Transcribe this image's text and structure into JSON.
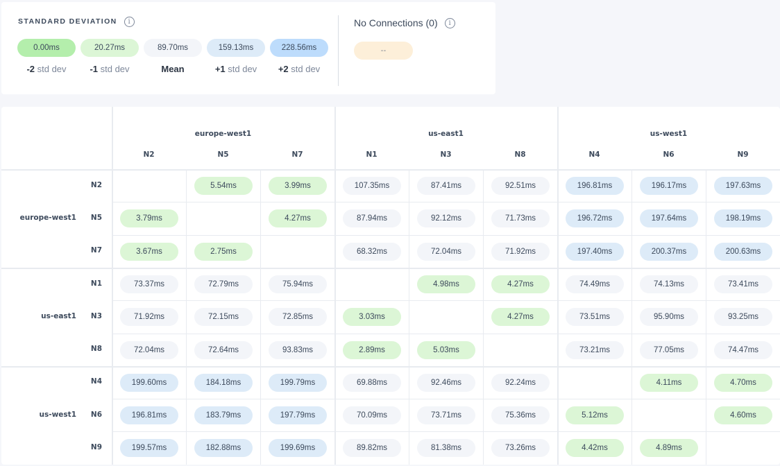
{
  "std_panel": {
    "title": "STANDARD DEVIATION",
    "info_icon": "info-circle-icon",
    "levels": [
      {
        "value": "0.00ms",
        "prefix": "-2",
        "suffix": "std dev",
        "color": "#b4eeac"
      },
      {
        "value": "20.27ms",
        "prefix": "-1",
        "suffix": "std dev",
        "color": "#dcf6d6"
      },
      {
        "value": "89.70ms",
        "prefix": "Mean",
        "suffix": "",
        "color": "#f3f5f9"
      },
      {
        "value": "159.13ms",
        "prefix": "+1",
        "suffix": "std dev",
        "color": "#ddebf8"
      },
      {
        "value": "228.56ms",
        "prefix": "+2",
        "suffix": "std dev",
        "color": "#bddcfc"
      }
    ]
  },
  "no_connections": {
    "title": "No Connections (0)",
    "value": "--",
    "color": "#fdefd9"
  },
  "colors": {
    "green": "#dcf6d6",
    "grey": "#f3f5f9",
    "blue": "#ddebf8"
  },
  "matrix": {
    "groups": [
      {
        "name": "europe-west1",
        "nodes": [
          "N2",
          "N5",
          "N7"
        ]
      },
      {
        "name": "us-east1",
        "nodes": [
          "N1",
          "N3",
          "N8"
        ]
      },
      {
        "name": "us-west1",
        "nodes": [
          "N4",
          "N6",
          "N9"
        ]
      }
    ],
    "rows": [
      [
        null,
        "5.54ms",
        "3.99ms",
        "107.35ms",
        "87.41ms",
        "92.51ms",
        "196.81ms",
        "196.17ms",
        "197.63ms"
      ],
      [
        "3.79ms",
        null,
        "4.27ms",
        "87.94ms",
        "92.12ms",
        "71.73ms",
        "196.72ms",
        "197.64ms",
        "198.19ms"
      ],
      [
        "3.67ms",
        "2.75ms",
        null,
        "68.32ms",
        "72.04ms",
        "71.92ms",
        "197.40ms",
        "200.37ms",
        "200.63ms"
      ],
      [
        "73.37ms",
        "72.79ms",
        "75.94ms",
        null,
        "4.98ms",
        "4.27ms",
        "74.49ms",
        "74.13ms",
        "73.41ms"
      ],
      [
        "71.92ms",
        "72.15ms",
        "72.85ms",
        "3.03ms",
        null,
        "4.27ms",
        "73.51ms",
        "95.90ms",
        "93.25ms"
      ],
      [
        "72.04ms",
        "72.64ms",
        "93.83ms",
        "2.89ms",
        "5.03ms",
        null,
        "73.21ms",
        "77.05ms",
        "74.47ms"
      ],
      [
        "199.60ms",
        "184.18ms",
        "199.79ms",
        "69.88ms",
        "92.46ms",
        "92.24ms",
        null,
        "4.11ms",
        "4.70ms"
      ],
      [
        "196.81ms",
        "183.79ms",
        "197.79ms",
        "70.09ms",
        "73.71ms",
        "75.36ms",
        "5.12ms",
        null,
        "4.60ms"
      ],
      [
        "199.57ms",
        "182.88ms",
        "199.69ms",
        "89.82ms",
        "81.38ms",
        "73.26ms",
        "4.42ms",
        "4.89ms",
        null
      ]
    ]
  }
}
